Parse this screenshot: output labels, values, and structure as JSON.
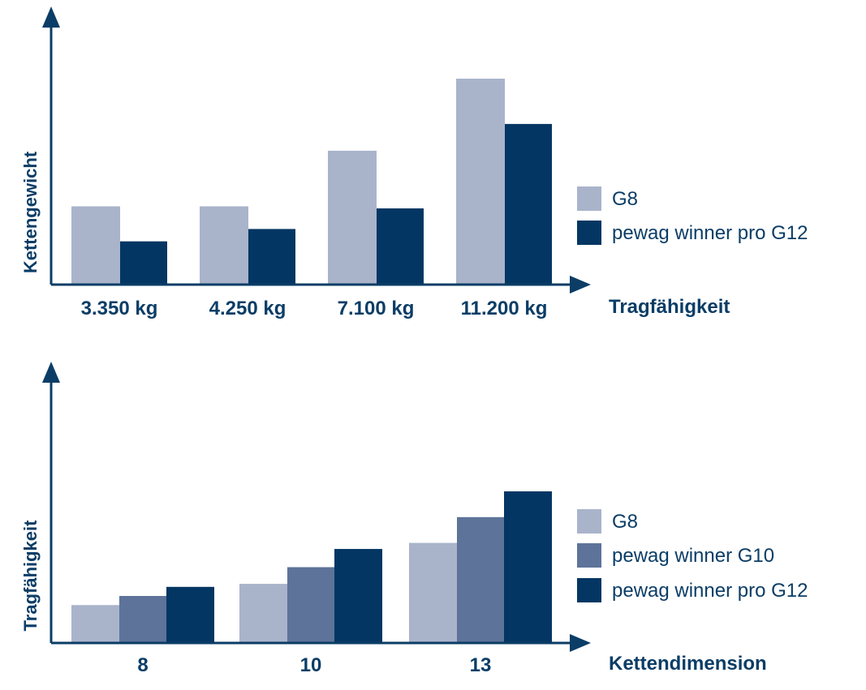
{
  "colors": {
    "axis": "#0b3d66",
    "g8": "#a9b4cb",
    "g10": "#5d7399",
    "g12": "#033663",
    "text": "#0b3d66"
  },
  "chart_data": [
    {
      "type": "bar",
      "categories": [
        "3.350 kg",
        "4.250 kg",
        "7.100 kg",
        "11.200 kg"
      ],
      "xlabel": "Tragfähigkeit",
      "ylabel": "Kettengewicht",
      "ylim": [
        0,
        100
      ],
      "y_ticks_shown": false,
      "legend_position": "right",
      "series": [
        {
          "name": "G8",
          "color": "#a9b4cb",
          "values": [
            38,
            38,
            65,
            100
          ]
        },
        {
          "name": "pewag winner pro G12",
          "color": "#033663",
          "values": [
            21,
            27,
            37,
            78
          ]
        }
      ]
    },
    {
      "type": "bar",
      "categories": [
        "8",
        "10",
        "13"
      ],
      "xlabel": "Kettendimension",
      "ylabel": "Tragfähigkeit",
      "ylim": [
        0,
        100
      ],
      "y_ticks_shown": false,
      "legend_position": "right",
      "series": [
        {
          "name": "G8",
          "color": "#a9b4cb",
          "values": [
            25,
            39,
            66
          ]
        },
        {
          "name": "pewag winner G10",
          "color": "#5d7399",
          "values": [
            31,
            50,
            83
          ]
        },
        {
          "name": "pewag winner pro G12",
          "color": "#033663",
          "values": [
            37,
            62,
            100
          ]
        }
      ]
    }
  ]
}
